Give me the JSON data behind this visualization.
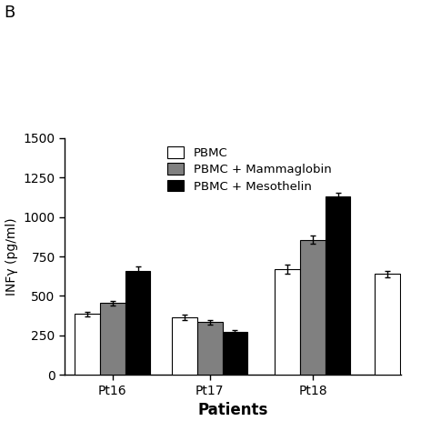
{
  "patients": [
    "Pt16",
    "Pt17",
    "Pt18"
  ],
  "series": {
    "PBMC": {
      "values": [
        385,
        365,
        670
      ],
      "errors": [
        15,
        15,
        30
      ],
      "color": "#ffffff",
      "edgecolor": "#000000"
    },
    "PBMC + Mammaglobin": {
      "values": [
        455,
        335,
        855
      ],
      "errors": [
        15,
        15,
        25
      ],
      "color": "#808080",
      "edgecolor": "#000000"
    },
    "PBMC + Mesothelin": {
      "values": [
        660,
        270,
        1130
      ],
      "errors": [
        25,
        15,
        25
      ],
      "color": "#000000",
      "edgecolor": "#000000"
    }
  },
  "ylabel": "INFγ (pg/ml)",
  "xlabel": "Patients",
  "ylim": [
    0,
    1500
  ],
  "yticks": [
    0,
    250,
    500,
    750,
    1000,
    1250,
    1500
  ],
  "panel_label": "B",
  "bar_width": 0.22,
  "figsize": [
    4.74,
    4.74
  ],
  "dpi": 100,
  "fourth_group_value": 640,
  "fourth_group_error": 20
}
